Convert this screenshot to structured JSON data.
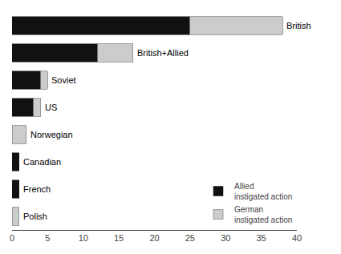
{
  "chart_data": {
    "type": "bar",
    "orientation": "horizontal",
    "stacked": true,
    "categories": [
      "British",
      "British+Allied",
      "Soviet",
      "US",
      "Norwegian",
      "Canadian",
      "French",
      "Polish"
    ],
    "series": [
      {
        "name": "Allied\ninstigated action",
        "color": "#111111",
        "values": [
          25,
          12,
          4,
          3,
          0,
          1,
          1,
          0
        ]
      },
      {
        "name": "German\ninstigated action",
        "color": "#cccccc",
        "values": [
          13,
          5,
          1,
          1,
          2,
          0,
          0,
          1
        ]
      }
    ],
    "xlim": [
      0,
      40
    ],
    "xticks": [
      0,
      5,
      10,
      15,
      20,
      25,
      30,
      35,
      40
    ],
    "grid": false,
    "legend": "lower right",
    "tick_labels": "x"
  }
}
